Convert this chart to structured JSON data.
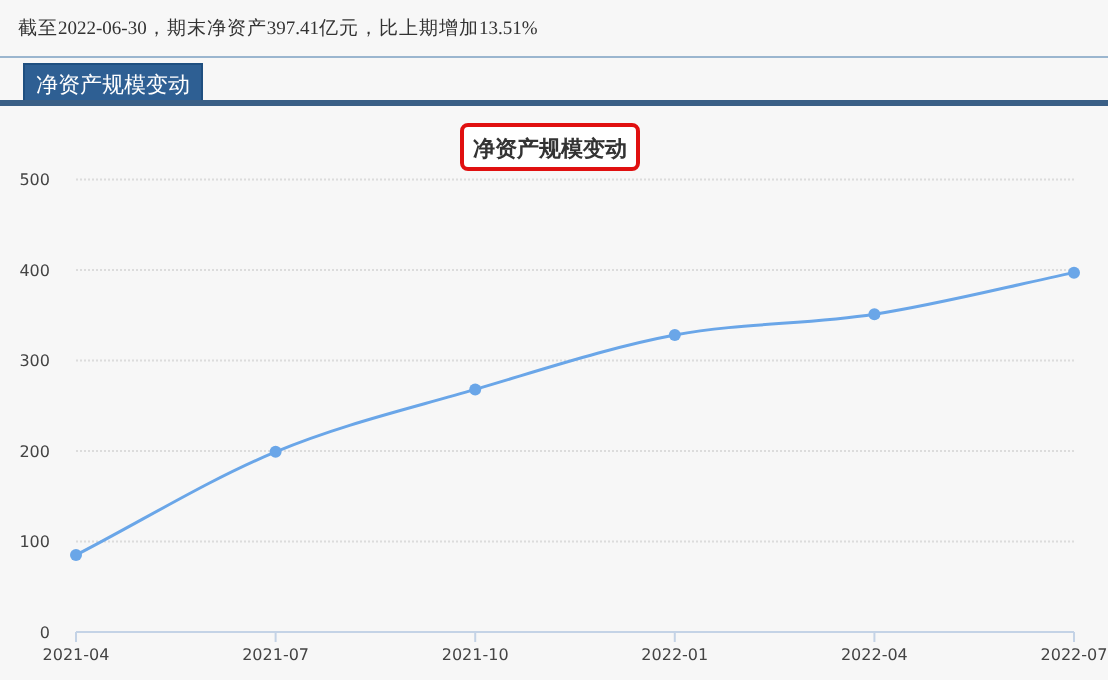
{
  "chart_data": {
    "type": "line",
    "title": "净资产规模变动",
    "annotations": [
      "截至2022-06-30，期末净资产397.41亿元，比上期增加13.51%",
      "净资产规模变动"
    ],
    "x": [
      "2021-04",
      "2021-07",
      "2021-10",
      "2022-01",
      "2022-04",
      "2022-07"
    ],
    "series": [
      {
        "color": "#6aa6e8",
        "values": [
          85,
          199,
          268,
          328,
          351,
          397
        ]
      }
    ],
    "xlim": [
      "2021-04",
      "2022-07"
    ],
    "xticks": [
      {
        "value": "2021-04",
        "label": "2021-04"
      },
      {
        "value": "2021-07",
        "label": "2021-07"
      },
      {
        "value": "2021-10",
        "label": "2021-10"
      },
      {
        "value": "2022-01",
        "label": "2022-01"
      },
      {
        "value": "2022-04",
        "label": "2022-04"
      },
      {
        "value": "2022-07",
        "label": "2022-07"
      }
    ],
    "ylim": [
      0,
      500
    ],
    "yticks": [
      0,
      100,
      200,
      300,
      400,
      500
    ],
    "grid": "y",
    "marker": "circle",
    "line_style": "solid"
  }
}
